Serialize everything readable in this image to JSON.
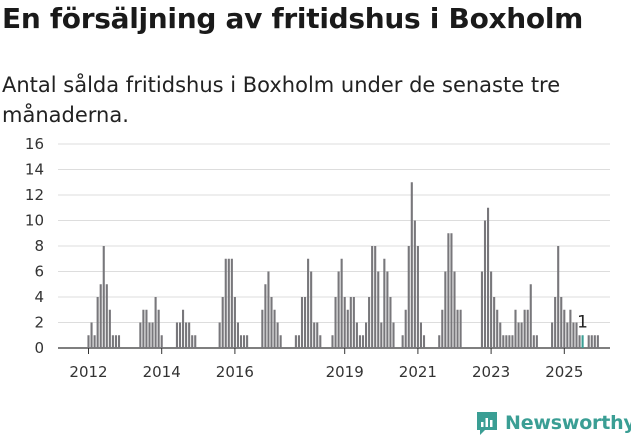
{
  "title": "En försäljning av fritidshus i Boxholm",
  "subtitle": "Antal sålda fritidshus i Boxholm under de senaste tre månaderna.",
  "brand": {
    "name": "Newsworthy",
    "icon": "newsworthy-logo-icon",
    "color": "#3a9e94"
  },
  "chart_data": {
    "type": "bar",
    "ylim": [
      0,
      16
    ],
    "yticks": [
      0,
      2,
      4,
      6,
      8,
      10,
      12,
      14,
      16
    ],
    "xtick_labels": [
      {
        "label": "2012",
        "index": 9
      },
      {
        "label": "2014",
        "index": 33
      },
      {
        "label": "2016",
        "index": 57
      },
      {
        "label": "2019",
        "index": 93
      },
      {
        "label": "2021",
        "index": 117
      },
      {
        "label": "2023",
        "index": 141
      },
      {
        "label": "2025",
        "index": 165
      }
    ],
    "grid": true,
    "bar_color": "#78777b",
    "highlight_color": "#3a9e94",
    "highlight_label": "1",
    "highlight_index": 171,
    "values": [
      0,
      0,
      0,
      0,
      0,
      0,
      0,
      0,
      0,
      1,
      2,
      1,
      4,
      5,
      8,
      5,
      3,
      1,
      1,
      1,
      0,
      0,
      0,
      0,
      0,
      0,
      2,
      3,
      3,
      2,
      2,
      4,
      3,
      1,
      0,
      0,
      0,
      0,
      2,
      2,
      3,
      2,
      2,
      1,
      1,
      0,
      0,
      0,
      0,
      0,
      0,
      0,
      2,
      4,
      7,
      7,
      7,
      4,
      2,
      1,
      1,
      1,
      0,
      0,
      0,
      0,
      3,
      5,
      6,
      4,
      3,
      2,
      1,
      0,
      0,
      0,
      0,
      1,
      1,
      4,
      4,
      7,
      6,
      2,
      2,
      1,
      0,
      0,
      0,
      1,
      4,
      6,
      7,
      4,
      3,
      4,
      4,
      2,
      1,
      1,
      2,
      4,
      8,
      8,
      6,
      2,
      7,
      6,
      4,
      2,
      0,
      0,
      1,
      3,
      8,
      13,
      10,
      8,
      2,
      1,
      0,
      0,
      0,
      0,
      1,
      3,
      6,
      9,
      9,
      6,
      3,
      3,
      0,
      0,
      0,
      0,
      0,
      0,
      6,
      10,
      11,
      6,
      4,
      3,
      2,
      1,
      1,
      1,
      1,
      3,
      2,
      2,
      3,
      3,
      5,
      1,
      1,
      0,
      0,
      0,
      0,
      2,
      4,
      8,
      4,
      3,
      2,
      3,
      2,
      2,
      1,
      1,
      0,
      1,
      1,
      1,
      1
    ]
  }
}
